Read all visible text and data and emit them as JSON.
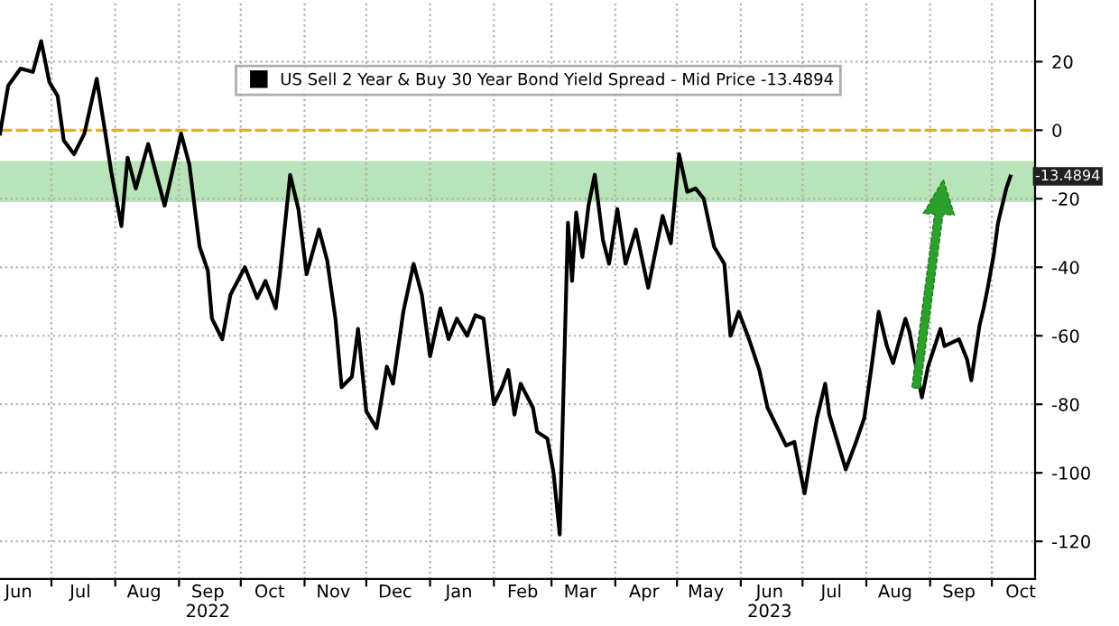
{
  "chart_data": {
    "type": "line",
    "x": [
      "2022-06-06",
      "2022-06-10",
      "2022-06-16",
      "2022-06-22",
      "2022-06-26",
      "2022-06-30",
      "2022-07-04",
      "2022-07-07",
      "2022-07-12",
      "2022-07-17",
      "2022-07-23",
      "2022-07-28",
      "2022-07-30",
      "2022-08-04",
      "2022-08-07",
      "2022-08-11",
      "2022-08-17",
      "2022-08-25",
      "2022-09-02",
      "2022-09-06",
      "2022-09-11",
      "2022-09-15",
      "2022-09-17",
      "2022-09-22",
      "2022-09-26",
      "2022-10-03",
      "2022-10-09",
      "2022-10-13",
      "2022-10-18",
      "2022-10-20",
      "2022-10-25",
      "2022-10-29",
      "2022-11-02",
      "2022-11-08",
      "2022-11-12",
      "2022-11-16",
      "2022-11-19",
      "2022-11-24",
      "2022-11-27",
      "2022-12-01",
      "2022-12-06",
      "2022-12-08",
      "2022-12-11",
      "2022-12-14",
      "2022-12-19",
      "2022-12-24",
      "2022-12-28",
      "2023-01-01",
      "2023-01-06",
      "2023-01-10",
      "2023-01-14",
      "2023-01-19",
      "2023-01-23",
      "2023-01-27",
      "2023-02-01",
      "2023-02-05",
      "2023-02-08",
      "2023-02-11",
      "2023-02-14",
      "2023-02-20",
      "2023-02-22",
      "2023-02-27",
      "2023-03-02",
      "2023-03-05",
      "2023-03-09",
      "2023-03-11",
      "2023-03-13",
      "2023-03-16",
      "2023-03-19",
      "2023-03-22",
      "2023-03-26",
      "2023-03-29",
      "2023-04-02",
      "2023-04-06",
      "2023-04-11",
      "2023-04-17",
      "2023-04-24",
      "2023-04-28",
      "2023-05-02",
      "2023-05-06",
      "2023-05-10",
      "2023-05-14",
      "2023-05-19",
      "2023-05-24",
      "2023-05-27",
      "2023-05-31",
      "2023-06-05",
      "2023-06-10",
      "2023-06-14",
      "2023-06-23",
      "2023-06-27",
      "2023-07-02",
      "2023-07-08",
      "2023-07-12",
      "2023-07-14",
      "2023-07-22",
      "2023-07-27",
      "2023-07-31",
      "2023-08-04",
      "2023-08-07",
      "2023-08-11",
      "2023-08-14",
      "2023-08-20",
      "2023-08-22",
      "2023-08-28",
      "2023-08-31",
      "2023-09-06",
      "2023-09-08",
      "2023-09-15",
      "2023-09-19",
      "2023-09-21",
      "2023-09-25",
      "2023-09-27",
      "2023-09-29",
      "2023-10-02",
      "2023-10-04",
      "2023-10-08",
      "2023-10-10"
    ],
    "series": [
      {
        "name": "US Sell 2 Year & Buy 30 Year Bond Yield Spread - Mid Price -13.4894",
        "color": "#000000",
        "values": [
          -1,
          13,
          18,
          17,
          26,
          14,
          10,
          -3,
          -7,
          -1,
          15,
          -4,
          -12,
          -28,
          -8,
          -17,
          -4,
          -22,
          -1,
          -10,
          -34,
          -41,
          -55,
          -61,
          -48,
          -40,
          -49,
          -44,
          -52,
          -42,
          -13,
          -23,
          -42,
          -29,
          -38,
          -55,
          -75,
          -72,
          -58,
          -82,
          -87,
          -80,
          -69,
          -74,
          -53,
          -39,
          -48,
          -66,
          -52,
          -61,
          -55,
          -60,
          -54,
          -55,
          -80,
          -75,
          -70,
          -83,
          -74,
          -81,
          -88,
          -90,
          -100,
          -118,
          -27,
          -44,
          -24,
          -37,
          -22,
          -13,
          -32,
          -39,
          -23,
          -39,
          -29,
          -46,
          -25,
          -33,
          -7,
          -18,
          -17,
          -20,
          -34,
          -39,
          -60,
          -53,
          -61,
          -70,
          -81,
          -92,
          -91,
          -106,
          -84,
          -74,
          -83,
          -99,
          -91,
          -84,
          -67,
          -53,
          -63,
          -68,
          -55,
          -59,
          -78,
          -69,
          -58,
          -63,
          -61,
          -67,
          -73,
          -57,
          -52,
          -46,
          -36,
          -27,
          -17,
          -13.4894
        ]
      }
    ],
    "xlim": [
      "2022-06-06",
      "2023-10-22"
    ],
    "xticks": [
      {
        "value": "2022-06-15",
        "label": "Jun"
      },
      {
        "value": "2022-07-01",
        "label": null
      },
      {
        "value": "2022-07-15",
        "label": "Jul"
      },
      {
        "value": "2022-08-01",
        "label": null
      },
      {
        "value": "2022-08-15",
        "label": "Aug"
      },
      {
        "value": "2022-09-01",
        "label": null
      },
      {
        "value": "2022-09-15",
        "label": "Sep\n2022"
      },
      {
        "value": "2022-10-01",
        "label": null
      },
      {
        "value": "2022-10-15",
        "label": "Oct"
      },
      {
        "value": "2022-11-01",
        "label": null
      },
      {
        "value": "2022-11-15",
        "label": "Nov"
      },
      {
        "value": "2022-12-01",
        "label": null
      },
      {
        "value": "2022-12-15",
        "label": "Dec"
      },
      {
        "value": "2023-01-01",
        "label": null
      },
      {
        "value": "2023-01-15",
        "label": "Jan"
      },
      {
        "value": "2023-02-01",
        "label": null
      },
      {
        "value": "2023-02-15",
        "label": "Feb"
      },
      {
        "value": "2023-03-01",
        "label": null
      },
      {
        "value": "2023-03-15",
        "label": "Mar"
      },
      {
        "value": "2023-04-01",
        "label": null
      },
      {
        "value": "2023-04-15",
        "label": "Apr"
      },
      {
        "value": "2023-05-01",
        "label": null
      },
      {
        "value": "2023-05-15",
        "label": "May"
      },
      {
        "value": "2023-06-01",
        "label": null
      },
      {
        "value": "2023-06-15",
        "label": "Jun\n2023"
      },
      {
        "value": "2023-07-01",
        "label": null
      },
      {
        "value": "2023-07-15",
        "label": "Jul"
      },
      {
        "value": "2023-08-01",
        "label": null
      },
      {
        "value": "2023-08-15",
        "label": "Aug"
      },
      {
        "value": "2023-09-01",
        "label": null
      },
      {
        "value": "2023-09-15",
        "label": "Sep"
      },
      {
        "value": "2023-10-01",
        "label": null
      },
      {
        "value": "2023-10-15",
        "label": "Oct"
      }
    ],
    "ylim": [
      -131,
      38
    ],
    "yticks": [
      -120,
      -100,
      -80,
      -60,
      -40,
      -20,
      0,
      20
    ],
    "ref_lines": [
      {
        "axis": "y",
        "value": 0,
        "label": null,
        "color": "#e0b020",
        "line_style": "dashed"
      }
    ],
    "bands": [
      {
        "axis": "y",
        "from": -21,
        "to": -9,
        "label": null,
        "color": "#a8dca8"
      }
    ],
    "annotations": [
      {
        "text": "-13.4894",
        "x": "2023-10-10",
        "y": -13.4894
      }
    ],
    "grid": true,
    "legend": "top",
    "line_style": "solid",
    "marker": "none"
  }
}
